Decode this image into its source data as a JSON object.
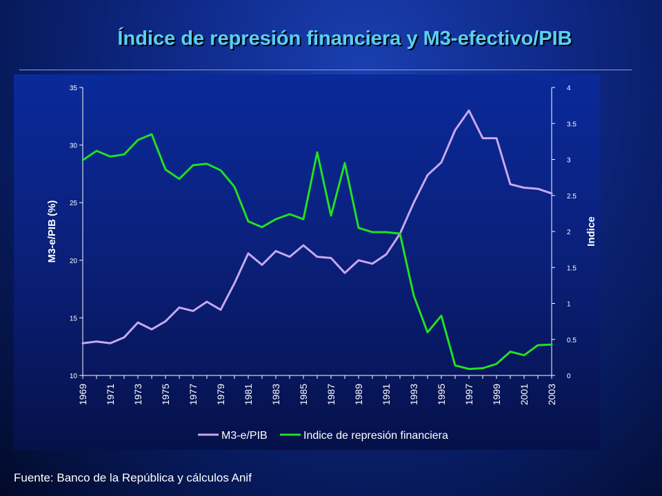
{
  "slide": {
    "title": "Índice de represión financiera y M3-efectivo/PIB",
    "source": "Fuente: Banco de la República y cálculos Anif",
    "colors": {
      "title": "#5ad0f0",
      "m3_series": "#c9a8f0",
      "index_series": "#22e022",
      "axis": "#ffffff"
    }
  },
  "chart_data": {
    "type": "line",
    "title": "",
    "x": [
      "1969",
      "1970",
      "1971",
      "1972",
      "1973",
      "1974",
      "1975",
      "1976",
      "1977",
      "1978",
      "1979",
      "1980",
      "1981",
      "1982",
      "1983",
      "1984",
      "1985",
      "1986",
      "1987",
      "1988",
      "1989",
      "1990",
      "1991",
      "1992",
      "1993",
      "1994",
      "1995",
      "1996",
      "1997",
      "1998",
      "1999",
      "2000",
      "2001",
      "2002",
      "2003"
    ],
    "x_tick_labels": [
      "1969",
      "1971",
      "1973",
      "1975",
      "1977",
      "1979",
      "1981",
      "1983",
      "1985",
      "1987",
      "1989",
      "1991",
      "1993",
      "1995",
      "1997",
      "1999",
      "2001",
      "2003"
    ],
    "ylabel_left": "M3-e/PIB (%)",
    "ylabel_right": "Indice",
    "ylim_left": [
      10,
      35
    ],
    "ylim_right": [
      0,
      4
    ],
    "yticks_left": [
      "10",
      "15",
      "20",
      "25",
      "30",
      "35"
    ],
    "yticks_right": [
      "0",
      "0.5",
      "1",
      "1.5",
      "2",
      "2.5",
      "3",
      "3.5",
      "4"
    ],
    "grid": false,
    "legend_position": "bottom",
    "series": [
      {
        "name": "M3-e/PIB",
        "axis": "left",
        "values": [
          12.8,
          12.95,
          12.8,
          13.3,
          14.6,
          14.0,
          14.7,
          15.9,
          15.6,
          16.4,
          15.7,
          18.0,
          20.6,
          19.6,
          20.8,
          20.3,
          21.3,
          20.3,
          20.2,
          18.9,
          20.0,
          19.7,
          20.5,
          22.3,
          25.0,
          27.4,
          28.5,
          31.3,
          33.0,
          30.6,
          30.6,
          26.6,
          26.3,
          26.2,
          25.8
        ]
      },
      {
        "name": "Indice de represión financiera",
        "axis": "right",
        "values": [
          2.99,
          3.12,
          3.04,
          3.07,
          3.27,
          3.35,
          2.86,
          2.73,
          2.92,
          2.94,
          2.85,
          2.62,
          2.14,
          2.06,
          2.17,
          2.24,
          2.17,
          3.1,
          2.22,
          2.95,
          2.05,
          1.99,
          1.99,
          1.97,
          1.11,
          0.6,
          0.83,
          0.14,
          0.09,
          0.1,
          0.16,
          0.33,
          0.28,
          0.42,
          0.43
        ]
      }
    ]
  }
}
